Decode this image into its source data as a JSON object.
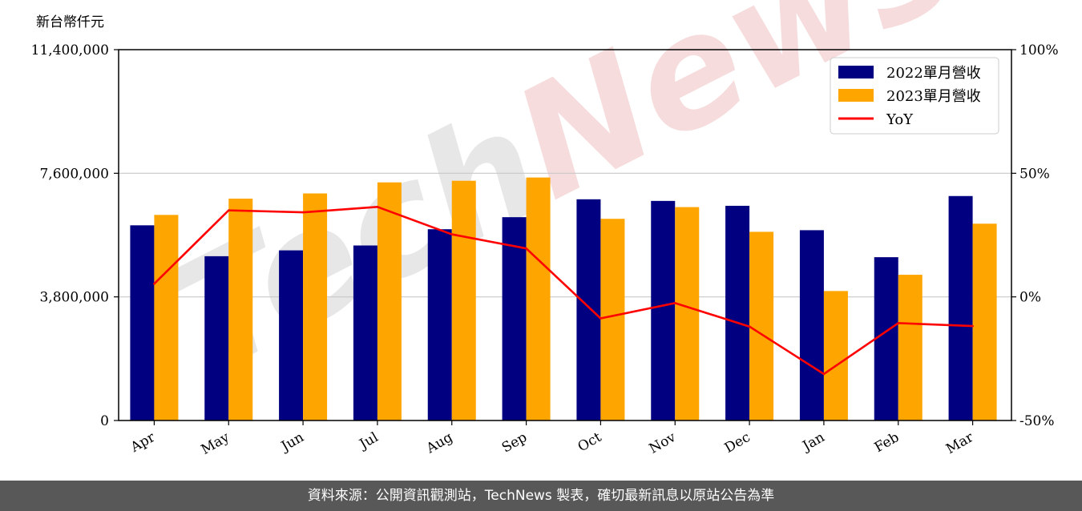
{
  "chart_data": {
    "type": "bar",
    "unit_label": "新台幣仟元",
    "categories": [
      "Apr",
      "May",
      "Jun",
      "Jul",
      "Aug",
      "Sep",
      "Oct",
      "Nov",
      "Dec",
      "Jan",
      "Feb",
      "Mar"
    ],
    "series": [
      {
        "name": "2022單月營收",
        "type": "bar",
        "color": "#000080",
        "values": [
          6000000,
          5050000,
          5230000,
          5380000,
          5880000,
          6250000,
          6800000,
          6750000,
          6600000,
          5850000,
          5020000,
          6900000
        ]
      },
      {
        "name": "2023單月營收",
        "type": "bar",
        "color": "#ffa500",
        "values": [
          6320000,
          6820000,
          6980000,
          7320000,
          7370000,
          7470000,
          6200000,
          6560000,
          5800000,
          3980000,
          4480000,
          6050000
        ]
      },
      {
        "name": "YoY",
        "type": "line",
        "axis": "right",
        "color": "#ff0000",
        "unit": "%",
        "values": [
          5.3,
          35.0,
          34.2,
          36.4,
          25.3,
          19.6,
          -8.7,
          -2.5,
          -12.0,
          -31.2,
          -10.6,
          -11.8
        ]
      }
    ],
    "y_left": {
      "min": 0,
      "max": 11400000,
      "ticks": [
        0,
        3800000,
        7600000,
        11400000
      ],
      "tick_labels": [
        "0",
        "3,800,000",
        "7,600,000",
        "11,400,000"
      ]
    },
    "y_right": {
      "min": -50,
      "max": 100,
      "ticks": [
        -50,
        0,
        50,
        100
      ],
      "tick_labels": [
        "-50%",
        "0%",
        "50%",
        "100%"
      ]
    },
    "grid": "horizontal",
    "legend_position": "top-right"
  },
  "watermark": "TechNews",
  "footer": {
    "text": "資料來源：公開資訊觀測站，TechNews 製表，確切最新訊息以原站公告為準"
  }
}
